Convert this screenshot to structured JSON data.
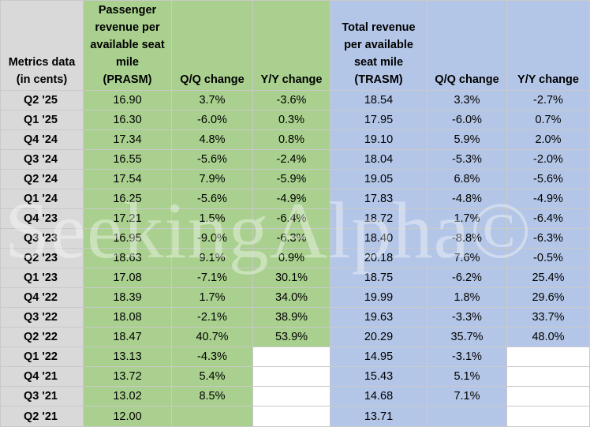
{
  "headers": {
    "metrics": [
      "Metrics data",
      "(in cents)"
    ],
    "prasm": [
      "Passenger",
      "revenue per",
      "available seat",
      "mile",
      "(PRASM)"
    ],
    "prasm_qq": "Q/Q change",
    "prasm_yy": "Y/Y change",
    "trasm": [
      "Total revenue",
      "per available",
      "seat mile",
      "(TRASM)"
    ],
    "trasm_qq": "Q/Q change",
    "trasm_yy": "Y/Y change"
  },
  "rows": [
    [
      "Q2 '25",
      "16.90",
      "3.7%",
      "-3.6%",
      "18.54",
      "3.3%",
      "-2.7%"
    ],
    [
      "Q1 '25",
      "16.30",
      "-6.0%",
      "0.3%",
      "17.95",
      "-6.0%",
      "0.7%"
    ],
    [
      "Q4 '24",
      "17.34",
      "4.8%",
      "0.8%",
      "19.10",
      "5.9%",
      "2.0%"
    ],
    [
      "Q3 '24",
      "16.55",
      "-5.6%",
      "-2.4%",
      "18.04",
      "-5.3%",
      "-2.0%"
    ],
    [
      "Q2 '24",
      "17.54",
      "7.9%",
      "-5.9%",
      "19.05",
      "6.8%",
      "-5.6%"
    ],
    [
      "Q1 '24",
      "16.25",
      "-5.6%",
      "-4.9%",
      "17.83",
      "-4.8%",
      "-4.9%"
    ],
    [
      "Q4 '23",
      "17.21",
      "1.5%",
      "-6.4%",
      "18.72",
      "1.7%",
      "-6.4%"
    ],
    [
      "Q3 '23",
      "16.95",
      "-9.0%",
      "-6.3%",
      "18.40",
      "-8.8%",
      "-6.3%"
    ],
    [
      "Q2 '23",
      "18.63",
      "9.1%",
      "0.9%",
      "20.18",
      "7.6%",
      "-0.5%"
    ],
    [
      "Q1 '23",
      "17.08",
      "-7.1%",
      "30.1%",
      "18.75",
      "-6.2%",
      "25.4%"
    ],
    [
      "Q4 '22",
      "18.39",
      "1.7%",
      "34.0%",
      "19.99",
      "1.8%",
      "29.6%"
    ],
    [
      "Q3 '22",
      "18.08",
      "-2.1%",
      "38.9%",
      "19.63",
      "-3.3%",
      "33.7%"
    ],
    [
      "Q2 '22",
      "18.47",
      "40.7%",
      "53.9%",
      "20.29",
      "35.7%",
      "48.0%"
    ],
    [
      "Q1 '22",
      "13.13",
      "-4.3%",
      "",
      "14.95",
      "-3.1%",
      ""
    ],
    [
      "Q4 '21",
      "13.72",
      "5.4%",
      "",
      "15.43",
      "5.1%",
      ""
    ],
    [
      "Q3 '21",
      "13.02",
      "8.5%",
      "",
      "14.68",
      "7.1%",
      ""
    ],
    [
      "Q2 '21",
      "12.00",
      "",
      "",
      "13.71",
      "",
      ""
    ]
  ],
  "watermark": "SeekingAlpha©",
  "colors": {
    "header_gray": "#d9d9d9",
    "prasm_green": "#a9d08e",
    "trasm_blue": "#b4c6e7",
    "grid": "#c9c9c9"
  }
}
